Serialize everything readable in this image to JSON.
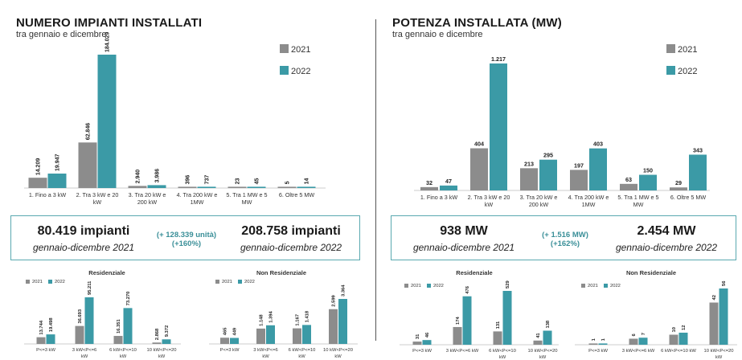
{
  "colors": {
    "y2021": "#8c8c8c",
    "y2022": "#3b9aa6",
    "box_border": "#5aa9b0",
    "delta": "#3a8f98"
  },
  "left": {
    "title": "NUMERO IMPIANTI INSTALLATI",
    "subtitle": "tra gennaio e dicembre",
    "summary": {
      "v2021": "80.419 impianti",
      "p2021": "gennaio-dicembre 2021",
      "delta1": "(+ 128.339 unità)",
      "delta2": "(+160%)",
      "v2022": "208.758 impianti",
      "p2022": "gennaio-dicembre 2022"
    }
  },
  "right": {
    "title": "POTENZA INSTALLATA (MW)",
    "subtitle": "tra gennaio e dicembre",
    "summary": {
      "v2021": "938 MW",
      "p2021": "gennaio-dicembre 2021",
      "delta1": "(+ 1.516 MW)",
      "delta2": "(+162%)",
      "v2022": "2.454 MW",
      "p2022": "gennaio-dicembre 2022"
    }
  },
  "chart_data": [
    {
      "id": "impianti-main",
      "type": "bar",
      "title": "",
      "categories": [
        [
          "1. Fino a 3 kW"
        ],
        [
          "2. Tra 3 kW e 20",
          "kW"
        ],
        [
          "3. Tra 20 kW e",
          "200 kW"
        ],
        [
          "4. Tra 200 kW e",
          "1MW"
        ],
        [
          "5. Tra 1 MW e 5",
          "MW"
        ],
        [
          "6. Oltre 5 MW"
        ]
      ],
      "series": [
        {
          "name": "2021",
          "values": [
            14209,
            62846,
            2940,
            396,
            23,
            5
          ],
          "labels": [
            "14.209",
            "62.846",
            "2.940",
            "396",
            "23",
            "5"
          ]
        },
        {
          "name": "2022",
          "values": [
            19947,
            184029,
            3986,
            737,
            45,
            14
          ],
          "labels": [
            "19.947",
            "184.029",
            "3.986",
            "737",
            "45",
            "14"
          ]
        }
      ],
      "legend": "top-right",
      "grid": false
    },
    {
      "id": "potenza-main",
      "type": "bar",
      "title": "",
      "categories": [
        [
          "1. Fino a 3 kW"
        ],
        [
          "2. Tra 3 kW e 20",
          "kW"
        ],
        [
          "3. Tra 20 kW e",
          "200 kW"
        ],
        [
          "4. Tra 200 kW e",
          "1MW"
        ],
        [
          "5. Tra 1 MW e 5",
          "MW"
        ],
        [
          "6. Oltre 5 MW"
        ]
      ],
      "series": [
        {
          "name": "2021",
          "values": [
            32,
            404,
            213,
            197,
            63,
            29
          ],
          "labels": [
            "32",
            "404",
            "213",
            "197",
            "63",
            "29"
          ]
        },
        {
          "name": "2022",
          "values": [
            47,
            1217,
            295,
            403,
            150,
            343
          ],
          "labels": [
            "47",
            "1.217",
            "295",
            "403",
            "150",
            "343"
          ]
        }
      ],
      "legend": "top-right",
      "grid": false
    },
    {
      "id": "impianti-res",
      "type": "bar",
      "title": "Residenziale",
      "categories": [
        [
          "P<=3 kW"
        ],
        [
          "3 kW<P<=6",
          "kW"
        ],
        [
          "6 kW<P<=10",
          "kW"
        ],
        [
          "10 kW<P<=20",
          "kW"
        ]
      ],
      "series": [
        {
          "name": "2021",
          "values": [
            13744,
            36693,
            16351,
            2868
          ],
          "labels": [
            "13.744",
            "36.693",
            "16.351",
            "2.868"
          ]
        },
        {
          "name": "2022",
          "values": [
            19498,
            95211,
            73270,
            9372
          ],
          "labels": [
            "19.498",
            "95.211",
            "73.270",
            "9.372"
          ]
        }
      ],
      "legend": "top-left",
      "grid": false
    },
    {
      "id": "impianti-nonres",
      "type": "bar",
      "title": "Non Residenziale",
      "categories": [
        [
          "P<=3 kW"
        ],
        [
          "3 kW<P<=6",
          "kW"
        ],
        [
          "6 kW<P<=10",
          "kW"
        ],
        [
          "10 kW<P<=20",
          "kW"
        ]
      ],
      "series": [
        {
          "name": "2021",
          "values": [
            465,
            1148,
            1167,
            2599
          ],
          "labels": [
            "465",
            "1.148",
            "1.167",
            "2.599"
          ]
        },
        {
          "name": "2022",
          "values": [
            449,
            1394,
            1418,
            3364
          ],
          "labels": [
            "449",
            "1.394",
            "1.418",
            "3.364"
          ]
        }
      ],
      "legend": "top-left",
      "grid": false
    },
    {
      "id": "potenza-res",
      "type": "bar",
      "title": "Residenziale",
      "categories": [
        [
          "P<=3 kW"
        ],
        [
          "3 kW<P<=6 kW"
        ],
        [
          "6 kW<P<=10",
          "kW"
        ],
        [
          "10 kW<P<=20",
          "kW"
        ]
      ],
      "series": [
        {
          "name": "2021",
          "values": [
            31,
            174,
            131,
            41
          ],
          "labels": [
            "31",
            "174",
            "131",
            "41"
          ]
        },
        {
          "name": "2022",
          "values": [
            46,
            476,
            529,
            138
          ],
          "labels": [
            "46",
            "476",
            "529",
            "138"
          ]
        }
      ],
      "legend": "top-left",
      "grid": false
    },
    {
      "id": "potenza-nonres",
      "type": "bar",
      "title": "Non Residenziale",
      "categories": [
        [
          "P<=3 kW"
        ],
        [
          "3 kW<P<=6 kW"
        ],
        [
          "6 kW<P<=10 kW"
        ],
        [
          "10 kW<P<=20",
          "kW"
        ]
      ],
      "series": [
        {
          "name": "2021",
          "values": [
            1,
            6,
            10,
            42
          ],
          "labels": [
            "1",
            "6",
            "10",
            "42"
          ]
        },
        {
          "name": "2022",
          "values": [
            1,
            7,
            12,
            56
          ],
          "labels": [
            "1",
            "7",
            "12",
            "56"
          ]
        }
      ],
      "legend": "top-left",
      "grid": false
    }
  ]
}
